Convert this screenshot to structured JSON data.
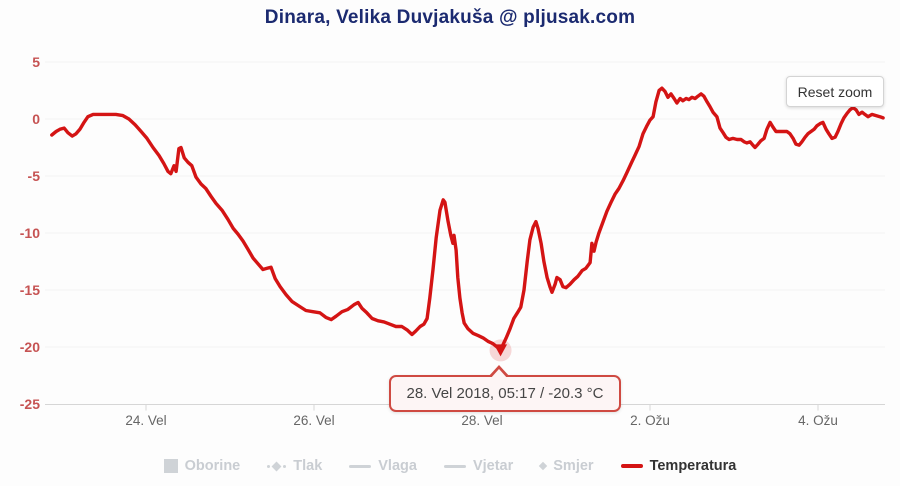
{
  "header": {
    "title": "Dinara, Velika Duvjakuša @ pljusak.com"
  },
  "buttons": {
    "reset_zoom": "Reset zoom"
  },
  "tooltip": {
    "text": "28. Vel 2018, 05:17 / -20.3 °C"
  },
  "colors": {
    "title": "#1b2a70",
    "series_red": "#d41414",
    "y_label_red": "#c65353",
    "x_label_gray": "#666666",
    "grid": "#f2f2f2",
    "axis": "#d6d6d6",
    "legend_disabled": "#c9cdd2",
    "legend_active_text": "#333333",
    "tooltip_border": "#cf4a42",
    "tooltip_bg": "#fdf5f5",
    "halo": "rgba(212,20,20,0.16)"
  },
  "legend": {
    "items": [
      {
        "label": "Oborine",
        "icon": "square",
        "enabled": false
      },
      {
        "label": "Tlak",
        "icon": "dot-diamond",
        "enabled": false
      },
      {
        "label": "Vlaga",
        "icon": "line",
        "enabled": false
      },
      {
        "label": "Vjetar",
        "icon": "line",
        "enabled": false
      },
      {
        "label": "Smjer",
        "icon": "diamond",
        "enabled": false
      },
      {
        "label": "Temperatura",
        "icon": "red-line",
        "enabled": true
      }
    ]
  },
  "chart_data": {
    "type": "line",
    "title": "Dinara, Velika Duvjakuša @ pljusak.com",
    "xlabel": "",
    "ylabel": "",
    "y_unit": "°C",
    "ylim": [
      -25,
      5
    ],
    "grid": "horizontal",
    "legend_position": "bottom",
    "y_ticks": [
      5,
      0,
      -5,
      -10,
      -15,
      -20,
      -25
    ],
    "time_origin": "22. Vel 2018 12:00 (t in hours)",
    "x_ticks": [
      {
        "label": "24. Vel",
        "t": 36
      },
      {
        "label": "26. Vel",
        "t": 84
      },
      {
        "label": "28. Vel",
        "t": 132
      },
      {
        "label": "2. Ožu",
        "t": 180
      },
      {
        "label": "4. Ožu",
        "t": 228
      }
    ],
    "selected_point": {
      "label": "28. Vel 2018, 05:17 / -20.3 °C",
      "t": 137.3,
      "temp": -20.3
    },
    "series": [
      {
        "name": "Temperatura",
        "color": "#d41414",
        "points": [
          [
            9.1,
            -1.4
          ],
          [
            10.3,
            -1.1
          ],
          [
            11.4,
            -0.9
          ],
          [
            12.6,
            -0.8
          ],
          [
            13.7,
            -1.2
          ],
          [
            14.9,
            -1.5
          ],
          [
            16,
            -1.3
          ],
          [
            17.1,
            -0.9
          ],
          [
            18.3,
            -0.3
          ],
          [
            19.4,
            0.2
          ],
          [
            20.9,
            0.4
          ],
          [
            22.9,
            0.4
          ],
          [
            25.1,
            0.4
          ],
          [
            27.4,
            0.4
          ],
          [
            29.4,
            0.3
          ],
          [
            31.1,
            0
          ],
          [
            32.9,
            -0.5
          ],
          [
            34.6,
            -1.1
          ],
          [
            36.3,
            -1.7
          ],
          [
            38,
            -2.5
          ],
          [
            39.7,
            -3.2
          ],
          [
            41.1,
            -3.9
          ],
          [
            42.3,
            -4.6
          ],
          [
            43.1,
            -4.8
          ],
          [
            44,
            -4.1
          ],
          [
            44.6,
            -4.6
          ],
          [
            45.4,
            -2.6
          ],
          [
            46,
            -2.5
          ],
          [
            46.9,
            -3.4
          ],
          [
            48,
            -3.8
          ],
          [
            49.1,
            -4.1
          ],
          [
            50.3,
            -5.1
          ],
          [
            51.7,
            -5.7
          ],
          [
            53.1,
            -6.1
          ],
          [
            54.6,
            -6.8
          ],
          [
            56,
            -7.4
          ],
          [
            57.7,
            -8
          ],
          [
            59.4,
            -8.8
          ],
          [
            60.9,
            -9.6
          ],
          [
            62.3,
            -10.1
          ],
          [
            63.7,
            -10.7
          ],
          [
            65.1,
            -11.4
          ],
          [
            66.6,
            -12.2
          ],
          [
            68,
            -12.7
          ],
          [
            69.4,
            -13.2
          ],
          [
            70.6,
            -13.1
          ],
          [
            71.7,
            -13
          ],
          [
            72.9,
            -14
          ],
          [
            74.3,
            -14.7
          ],
          [
            76,
            -15.4
          ],
          [
            77.7,
            -16
          ],
          [
            79.7,
            -16.4
          ],
          [
            81.7,
            -16.8
          ],
          [
            83.7,
            -16.9
          ],
          [
            85.7,
            -17
          ],
          [
            87.4,
            -17.4
          ],
          [
            88.9,
            -17.6
          ],
          [
            90.3,
            -17.3
          ],
          [
            92,
            -16.9
          ],
          [
            93.7,
            -16.7
          ],
          [
            95.4,
            -16.3
          ],
          [
            96.6,
            -16.1
          ],
          [
            97.7,
            -16.6
          ],
          [
            99.1,
            -17
          ],
          [
            100.6,
            -17.5
          ],
          [
            102.3,
            -17.7
          ],
          [
            104,
            -17.8
          ],
          [
            105.7,
            -18
          ],
          [
            107.4,
            -18.2
          ],
          [
            109.1,
            -18.2
          ],
          [
            110.6,
            -18.5
          ],
          [
            112,
            -18.9
          ],
          [
            113.1,
            -18.6
          ],
          [
            114.3,
            -18.2
          ],
          [
            115.4,
            -18
          ],
          [
            116.3,
            -17.5
          ],
          [
            117.1,
            -15.7
          ],
          [
            118,
            -13.2
          ],
          [
            118.9,
            -10.4
          ],
          [
            120,
            -8
          ],
          [
            120.9,
            -7.1
          ],
          [
            121.4,
            -7.3
          ],
          [
            122.3,
            -9
          ],
          [
            123.1,
            -10.2
          ],
          [
            123.7,
            -10.9
          ],
          [
            124,
            -10.2
          ],
          [
            124.6,
            -11.5
          ],
          [
            125.1,
            -13.9
          ],
          [
            125.7,
            -15.7
          ],
          [
            126.3,
            -17
          ],
          [
            126.9,
            -17.9
          ],
          [
            128,
            -18.4
          ],
          [
            129.4,
            -18.8
          ],
          [
            130.9,
            -19
          ],
          [
            132.3,
            -19.2
          ],
          [
            133.7,
            -19.5
          ],
          [
            135.1,
            -19.7
          ],
          [
            136.3,
            -20
          ],
          [
            137.3,
            -20.3
          ],
          [
            138,
            -19.8
          ],
          [
            138.9,
            -19.2
          ],
          [
            140,
            -18.4
          ],
          [
            141.1,
            -17.5
          ],
          [
            142.3,
            -16.9
          ],
          [
            143.1,
            -16.5
          ],
          [
            144,
            -15
          ],
          [
            144.9,
            -12.5
          ],
          [
            145.7,
            -10.6
          ],
          [
            146.6,
            -9.5
          ],
          [
            147.4,
            -9
          ],
          [
            148,
            -9.6
          ],
          [
            148.9,
            -10.9
          ],
          [
            149.7,
            -12.5
          ],
          [
            150.6,
            -13.9
          ],
          [
            151.4,
            -14.7
          ],
          [
            152,
            -15.2
          ],
          [
            152.9,
            -14.5
          ],
          [
            153.4,
            -13.9
          ],
          [
            154.3,
            -14.1
          ],
          [
            155.1,
            -14.7
          ],
          [
            156,
            -14.8
          ],
          [
            157.1,
            -14.5
          ],
          [
            158.3,
            -14.1
          ],
          [
            159.4,
            -13.8
          ],
          [
            160.6,
            -13.3
          ],
          [
            161.7,
            -13.1
          ],
          [
            162.9,
            -12.6
          ],
          [
            163.4,
            -10.9
          ],
          [
            164,
            -11.6
          ],
          [
            164.6,
            -10.8
          ],
          [
            165.4,
            -10
          ],
          [
            166.6,
            -9
          ],
          [
            167.7,
            -8.1
          ],
          [
            168.9,
            -7.3
          ],
          [
            170,
            -6.6
          ],
          [
            171.1,
            -6.1
          ],
          [
            172.3,
            -5.4
          ],
          [
            173.4,
            -4.7
          ],
          [
            174.6,
            -3.9
          ],
          [
            175.7,
            -3.2
          ],
          [
            176.9,
            -2.4
          ],
          [
            178,
            -1.3
          ],
          [
            179.1,
            -0.6
          ],
          [
            180,
            -0.1
          ],
          [
            180.9,
            0.2
          ],
          [
            181.7,
            1.5
          ],
          [
            182.6,
            2.5
          ],
          [
            183.4,
            2.7
          ],
          [
            184.3,
            2.4
          ],
          [
            185.1,
            1.9
          ],
          [
            186,
            2.2
          ],
          [
            186.9,
            1.8
          ],
          [
            187.7,
            1.4
          ],
          [
            188.6,
            1.8
          ],
          [
            189.4,
            1.6
          ],
          [
            190.3,
            1.8
          ],
          [
            191.1,
            1.7
          ],
          [
            192,
            1.9
          ],
          [
            192.9,
            1.8
          ],
          [
            193.7,
            2
          ],
          [
            194.6,
            2.2
          ],
          [
            195.4,
            2
          ],
          [
            196.3,
            1.5
          ],
          [
            197.1,
            1.1
          ],
          [
            198,
            0.6
          ],
          [
            199.1,
            0.2
          ],
          [
            200,
            -0.8
          ],
          [
            200.9,
            -1.2
          ],
          [
            201.7,
            -1.6
          ],
          [
            202.6,
            -1.8
          ],
          [
            203.7,
            -1.7
          ],
          [
            204.9,
            -1.8
          ],
          [
            206,
            -1.8
          ],
          [
            206.9,
            -2
          ],
          [
            207.7,
            -2.1
          ],
          [
            208.6,
            -2
          ],
          [
            209.4,
            -2.3
          ],
          [
            210,
            -2.5
          ],
          [
            210.9,
            -2.2
          ],
          [
            211.7,
            -1.9
          ],
          [
            212.6,
            -1.7
          ],
          [
            213.4,
            -0.9
          ],
          [
            214.3,
            -0.3
          ],
          [
            215.1,
            -0.7
          ],
          [
            216,
            -1.1
          ],
          [
            216.9,
            -1.1
          ],
          [
            218,
            -1.1
          ],
          [
            219.1,
            -1.1
          ],
          [
            220,
            -1.3
          ],
          [
            220.9,
            -1.7
          ],
          [
            221.7,
            -2.2
          ],
          [
            222.6,
            -2.3
          ],
          [
            223.4,
            -2
          ],
          [
            224.3,
            -1.6
          ],
          [
            225.1,
            -1.3
          ],
          [
            226,
            -1.1
          ],
          [
            226.9,
            -0.9
          ],
          [
            227.7,
            -0.6
          ],
          [
            228.6,
            -0.4
          ],
          [
            229.4,
            -0.3
          ],
          [
            230.3,
            -0.9
          ],
          [
            231.1,
            -1.3
          ],
          [
            232,
            -1.7
          ],
          [
            232.9,
            -1.6
          ],
          [
            233.7,
            -1.1
          ],
          [
            234.6,
            -0.4
          ],
          [
            235.4,
            0.1
          ],
          [
            236.3,
            0.5
          ],
          [
            237.1,
            0.8
          ],
          [
            238,
            1
          ],
          [
            238.9,
            0.8
          ],
          [
            239.7,
            0.4
          ],
          [
            240.6,
            0.6
          ],
          [
            241.4,
            0.4
          ],
          [
            242.3,
            0.2
          ],
          [
            243.4,
            0.4
          ],
          [
            244.6,
            0.3
          ],
          [
            245.7,
            0.2
          ],
          [
            246.6,
            0.1
          ]
        ]
      }
    ]
  }
}
